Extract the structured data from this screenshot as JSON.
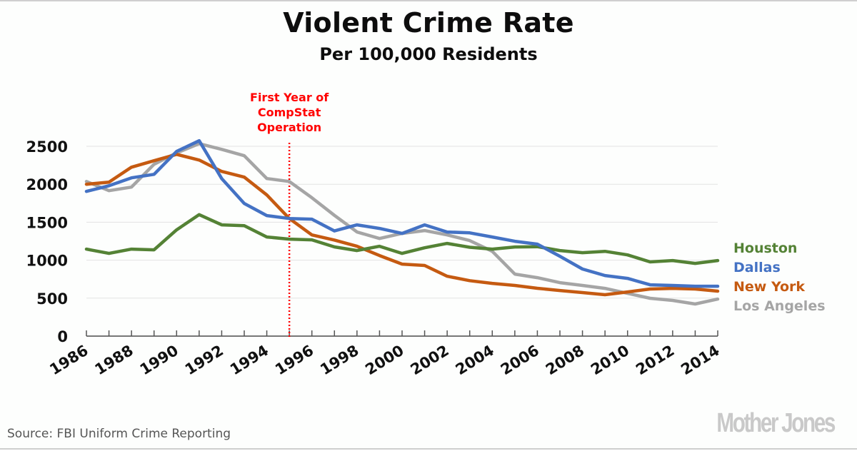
{
  "header": {
    "title": "Violent Crime Rate",
    "subtitle": "Per 100,000 Residents"
  },
  "footer": {
    "source": "Source: FBI Uniform Crime Reporting",
    "brand": "Mother Jones"
  },
  "chart_data": {
    "type": "line",
    "title": "Violent Crime Rate",
    "subtitle": "Per 100,000 Residents",
    "xlabel": "",
    "ylabel": "",
    "ylim": [
      0,
      2500
    ],
    "yticks": [
      0,
      500,
      1000,
      1500,
      2000,
      2500
    ],
    "grid": true,
    "legend_position": "right",
    "x": [
      1986,
      1987,
      1988,
      1989,
      1990,
      1991,
      1992,
      1993,
      1994,
      1995,
      1996,
      1997,
      1998,
      1999,
      2000,
      2001,
      2002,
      2003,
      2004,
      2005,
      2006,
      2007,
      2008,
      2009,
      2010,
      2011,
      2012,
      2013,
      2014
    ],
    "xtick_labels": [
      "1986",
      "1988",
      "1990",
      "1992",
      "1994",
      "1996",
      "1998",
      "2000",
      "2002",
      "2004",
      "2006",
      "2008",
      "2010",
      "2012",
      "2014"
    ],
    "series": [
      {
        "name": "Houston",
        "color": "#548235",
        "values": [
          1146,
          1089,
          1146,
          1136,
          1399,
          1600,
          1465,
          1455,
          1305,
          1277,
          1268,
          1175,
          1127,
          1183,
          1089,
          1164,
          1221,
          1170,
          1146,
          1174,
          1178,
          1127,
          1099,
          1117,
          1070,
          977,
          995,
          958,
          995
        ]
      },
      {
        "name": "Dallas",
        "color": "#4472C4",
        "values": [
          1906,
          1980,
          2085,
          2131,
          2432,
          2573,
          2075,
          1747,
          1587,
          1549,
          1540,
          1385,
          1465,
          1418,
          1352,
          1465,
          1371,
          1360,
          1305,
          1249,
          1211,
          1052,
          883,
          798,
          760,
          676,
          667,
          657,
          657
        ]
      },
      {
        "name": "New York",
        "color": "#C55A11",
        "values": [
          2000,
          2028,
          2225,
          2310,
          2394,
          2319,
          2169,
          2094,
          1859,
          1549,
          1333,
          1265,
          1183,
          1061,
          948,
          930,
          789,
          730,
          695,
          667,
          630,
          601,
          573,
          545,
          582,
          620,
          629,
          620,
          592
        ]
      },
      {
        "name": "Los Angeles",
        "color": "#A5A5A5",
        "values": [
          2037,
          1915,
          1962,
          2263,
          2413,
          2535,
          2460,
          2376,
          2075,
          2037,
          1822,
          1590,
          1371,
          1286,
          1352,
          1390,
          1333,
          1258,
          1117,
          817,
          770,
          704,
          667,
          629,
          563,
          498,
          470,
          423,
          488
        ]
      }
    ],
    "annotations": [
      {
        "x": 1995,
        "text_lines": [
          "First Year of",
          "CompStat",
          "Operation"
        ],
        "color": "#ff0000",
        "style": "dotted-vertical-line"
      }
    ]
  }
}
